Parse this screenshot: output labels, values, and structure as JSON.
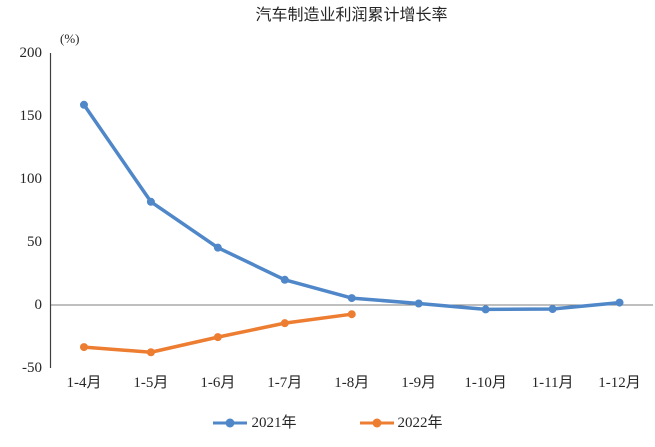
{
  "chart_data": {
    "type": "line",
    "title": "汽车制造业利润累计增长率",
    "y_unit_label": "(%)",
    "categories": [
      "1-4月",
      "1-5月",
      "1-6月",
      "1-7月",
      "1-8月",
      "1-9月",
      "1-10月",
      "1-11月",
      "1-12月"
    ],
    "series": [
      {
        "name": "2021年",
        "color": "#4F87C8",
        "values": [
          158.9,
          81.9,
          45.5,
          20.0,
          5.5,
          1.2,
          -3.5,
          -3.2,
          1.9
        ]
      },
      {
        "name": "2022年",
        "color": "#ED7D31",
        "values": [
          -33.4,
          -37.5,
          -25.5,
          -14.4,
          -7.3,
          null,
          null,
          null,
          null
        ]
      }
    ],
    "ylim": [
      -50,
      200
    ],
    "yticks": [
      200,
      150,
      100,
      50,
      0,
      -50
    ],
    "grid": false,
    "zero_line": true,
    "legend_position": "bottom",
    "axis_color": "#3f3f3f",
    "zero_line_color": "#7f7f7f",
    "text_color": "#262626"
  }
}
